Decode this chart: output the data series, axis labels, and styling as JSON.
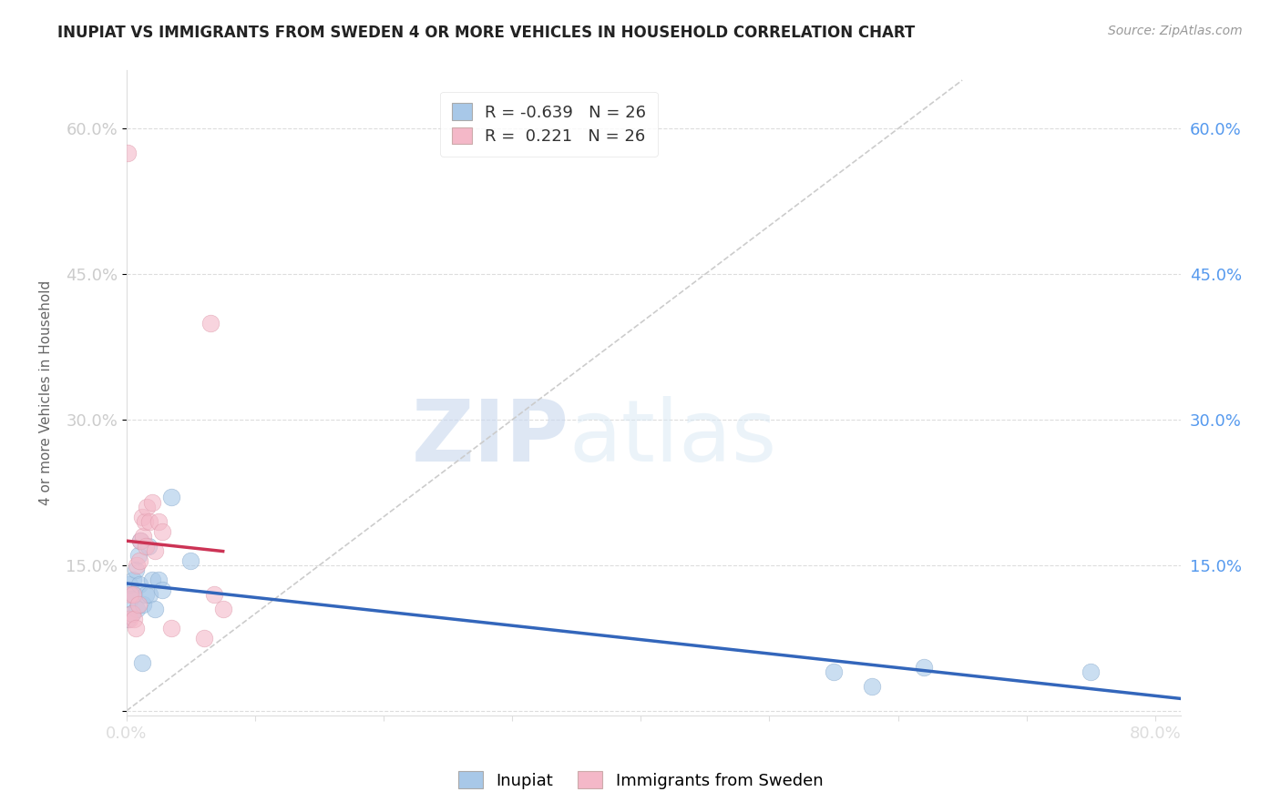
{
  "title": "INUPIAT VS IMMIGRANTS FROM SWEDEN 4 OR MORE VEHICLES IN HOUSEHOLD CORRELATION CHART",
  "source": "Source: ZipAtlas.com",
  "ylabel": "4 or more Vehicles in Household",
  "xlim": [
    0.0,
    0.82
  ],
  "ylim": [
    -0.005,
    0.66
  ],
  "legend_r_blue": "-0.639",
  "legend_r_pink": "0.221",
  "legend_n": "26",
  "blue_color": "#a8c8e8",
  "pink_color": "#f4b8c8",
  "blue_line_color": "#3366bb",
  "pink_line_color": "#cc3355",
  "diagonal_color": "#cccccc",
  "watermark_zip": "ZIP",
  "watermark_atlas": "atlas",
  "inupiat_x": [
    0.001,
    0.002,
    0.003,
    0.004,
    0.005,
    0.006,
    0.007,
    0.008,
    0.009,
    0.01,
    0.011,
    0.012,
    0.013,
    0.015,
    0.017,
    0.018,
    0.02,
    0.022,
    0.025,
    0.028,
    0.035,
    0.05,
    0.55,
    0.58,
    0.62,
    0.75
  ],
  "inupiat_y": [
    0.095,
    0.13,
    0.115,
    0.1,
    0.135,
    0.12,
    0.145,
    0.105,
    0.16,
    0.13,
    0.175,
    0.05,
    0.11,
    0.12,
    0.17,
    0.12,
    0.135,
    0.105,
    0.135,
    0.125,
    0.22,
    0.155,
    0.04,
    0.025,
    0.045,
    0.04
  ],
  "sweden_x": [
    0.001,
    0.002,
    0.003,
    0.004,
    0.005,
    0.006,
    0.007,
    0.008,
    0.009,
    0.01,
    0.011,
    0.012,
    0.013,
    0.014,
    0.015,
    0.016,
    0.018,
    0.02,
    0.022,
    0.025,
    0.028,
    0.035,
    0.06,
    0.065,
    0.068,
    0.075
  ],
  "sweden_y": [
    0.575,
    0.095,
    0.12,
    0.1,
    0.12,
    0.095,
    0.085,
    0.15,
    0.11,
    0.155,
    0.175,
    0.2,
    0.18,
    0.195,
    0.17,
    0.21,
    0.195,
    0.215,
    0.165,
    0.195,
    0.185,
    0.085,
    0.075,
    0.4,
    0.12,
    0.105
  ]
}
